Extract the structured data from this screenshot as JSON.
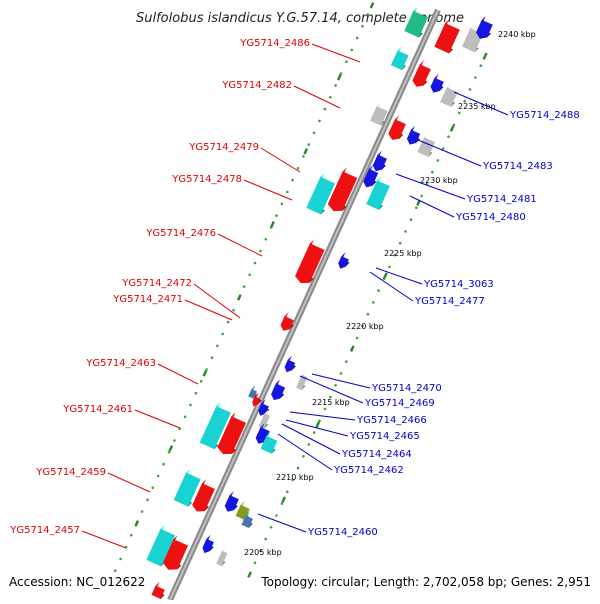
{
  "title": "Sulfolobus islandicus Y.G.57.14, complete genome",
  "footer": {
    "accession": "Accession: NC_012622",
    "topology": "Topology: circular; Length: 2,702,058 bp; Genes: 2,951"
  },
  "colors": {
    "backbone": "#8a8a8a",
    "forward_label": "#dd0000",
    "reverse_label": "#0000cc",
    "tick_major": "#228822",
    "tick_minor": "#33aa33",
    "gene_red": "#ee1111",
    "gene_cyan": "#19d3d3",
    "gene_blue": "#1515dd",
    "gene_gray": "#bdbdbd",
    "gene_teal": "#22bb88",
    "gene_olive": "#889922",
    "gene_steel": "#4477aa"
  },
  "scale_labels": [
    {
      "text": "2240 kbp",
      "pos_kbp": 2240
    },
    {
      "text": "2235 kbp",
      "pos_kbp": 2235
    },
    {
      "text": "2230 kbp",
      "pos_kbp": 2230
    },
    {
      "text": "2225 kbp",
      "pos_kbp": 2225
    },
    {
      "text": "2220 kbp",
      "pos_kbp": 2220
    },
    {
      "text": "2215 kbp",
      "pos_kbp": 2215
    },
    {
      "text": "2210 kbp",
      "pos_kbp": 2210
    },
    {
      "text": "2205 kbp",
      "pos_kbp": 2205
    }
  ],
  "forward_labels": [
    "YG5714_2486",
    "YG5714_2482",
    "YG5714_2479",
    "YG5714_2478",
    "YG5714_2476",
    "YG5714_2472",
    "YG5714_2471",
    "YG5714_2463",
    "YG5714_2461",
    "YG5714_2459",
    "YG5714_2457"
  ],
  "reverse_labels": [
    "YG5714_2488",
    "YG5714_2483",
    "YG5714_2481",
    "YG5714_2480",
    "YG5714_3063",
    "YG5714_2477",
    "YG5714_2470",
    "YG5714_2469",
    "YG5714_2466",
    "YG5714_2465",
    "YG5714_2464",
    "YG5714_2462",
    "YG5714_2460"
  ]
}
